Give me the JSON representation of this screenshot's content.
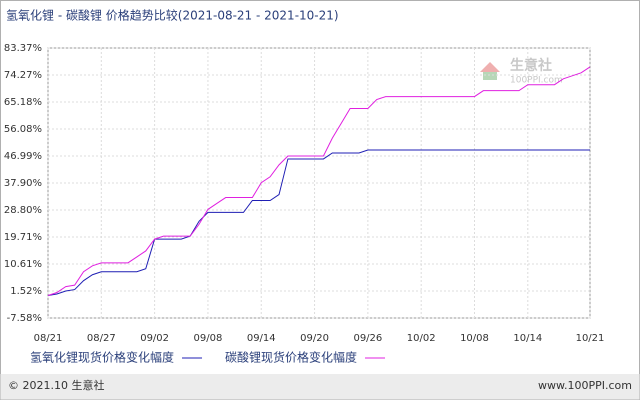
{
  "chart_data": {
    "type": "line",
    "title": "氢氧化锂 - 碳酸锂 价格趋势比较(2021-08-21 - 2021-10-21)",
    "categories": [
      "08/21",
      null,
      null,
      null,
      null,
      null,
      "08/27",
      null,
      null,
      null,
      null,
      null,
      "09/02",
      null,
      null,
      null,
      null,
      null,
      "09/08",
      null,
      null,
      null,
      null,
      null,
      "09/14",
      null,
      null,
      null,
      null,
      null,
      "09/20",
      null,
      null,
      null,
      null,
      null,
      "09/26",
      null,
      null,
      null,
      null,
      null,
      "10/02",
      null,
      null,
      null,
      null,
      null,
      "10/08",
      null,
      null,
      null,
      null,
      null,
      "10/14",
      null,
      null,
      null,
      null,
      null,
      null,
      "10/21"
    ],
    "series": [
      {
        "name": "氢氧化锂现货价格变化幅度",
        "color": "#1f1fb4",
        "values": [
          0,
          0.5,
          1.5,
          2,
          5,
          7,
          8,
          8,
          8,
          8,
          8,
          9,
          19,
          19,
          19,
          19,
          20,
          25,
          28,
          28,
          28,
          28,
          28,
          32,
          32,
          32,
          34,
          46,
          46,
          46,
          46,
          46,
          48,
          48,
          48,
          48,
          49,
          49,
          49,
          49,
          49,
          49,
          49,
          49,
          49,
          49,
          49,
          49,
          49,
          49,
          49,
          49,
          49,
          49,
          49,
          49,
          49,
          49,
          49,
          49,
          49,
          49
        ]
      },
      {
        "name": "碳酸锂现货价格变化幅度",
        "color": "#e020e0",
        "values": [
          0,
          1,
          3,
          3.5,
          8,
          10,
          11,
          11,
          11,
          11,
          13,
          15,
          19,
          20,
          20,
          20,
          20,
          24,
          29,
          31,
          33,
          33,
          33,
          33,
          38,
          40,
          44,
          47,
          47,
          47,
          47,
          47,
          53,
          58,
          63,
          63,
          63,
          66,
          67,
          67,
          67,
          67,
          67,
          67,
          67,
          67,
          67,
          67,
          67,
          69,
          69,
          69,
          69,
          69,
          71,
          71,
          71,
          71,
          73,
          74,
          75,
          77
        ]
      }
    ],
    "ylim": [
      -7.58,
      83.37
    ],
    "yticks": [
      {
        "value": -7.58,
        "label": "-7.58%"
      },
      {
        "value": 1.52,
        "label": "1.52%"
      },
      {
        "value": 10.61,
        "label": "10.61%"
      },
      {
        "value": 19.71,
        "label": "19.71%"
      },
      {
        "value": 28.8,
        "label": "28.80%"
      },
      {
        "value": 37.9,
        "label": "37.90%"
      },
      {
        "value": 46.99,
        "label": "46.99%"
      },
      {
        "value": 56.08,
        "label": "56.08%"
      },
      {
        "value": 65.18,
        "label": "65.18%"
      },
      {
        "value": 74.27,
        "label": "74.27%"
      },
      {
        "value": 83.37,
        "label": "83.37%"
      }
    ],
    "grid": true,
    "watermark": {
      "name": "生意社",
      "site": "100PPI.com"
    },
    "footer": {
      "left": "© 2021.10 生意社",
      "right": "www.100PPI.com"
    }
  }
}
